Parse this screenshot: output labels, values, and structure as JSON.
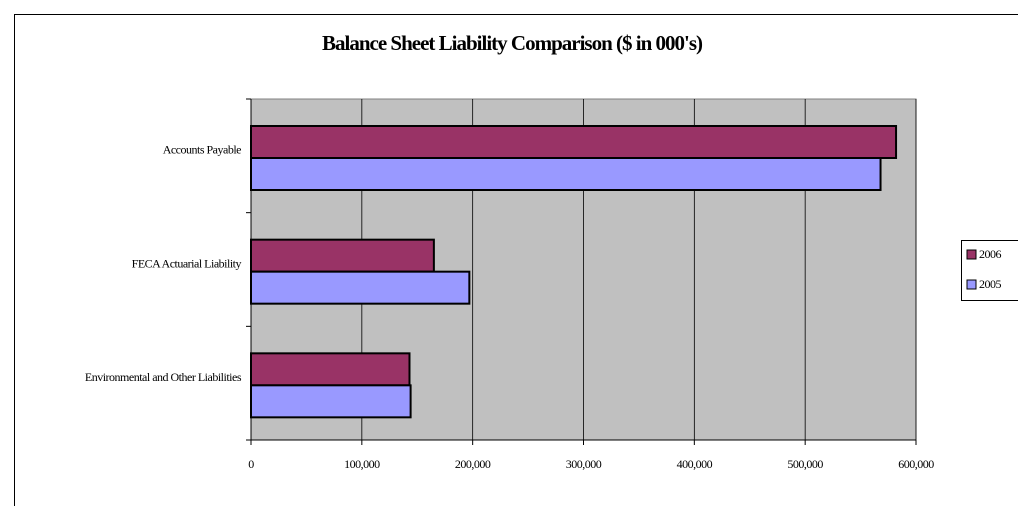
{
  "chart_data": {
    "type": "hbar",
    "title": "Balance Sheet Liability Comparison ($ in 000's)",
    "categories": [
      "Accounts Payable",
      "FECA Actuarial Liability",
      "Environmental and Other Liabilities"
    ],
    "series": [
      {
        "name": "2006",
        "color": "#993366",
        "values": [
          582000,
          165000,
          143000
        ]
      },
      {
        "name": "2005",
        "color": "#9999ff",
        "values": [
          568000,
          197000,
          144000
        ]
      }
    ],
    "xlim": [
      0,
      600000
    ],
    "xticks": [
      0,
      {
        "value": 100000,
        "label": "100,000"
      },
      {
        "value": 200000,
        "label": "200,000"
      },
      {
        "value": 300000,
        "label": "300,000"
      },
      {
        "value": 400000,
        "label": "400,000"
      },
      {
        "value": 500000,
        "label": "500,000"
      },
      {
        "value": 600000,
        "label": "600,000"
      }
    ],
    "grid": true,
    "legend": "right"
  }
}
